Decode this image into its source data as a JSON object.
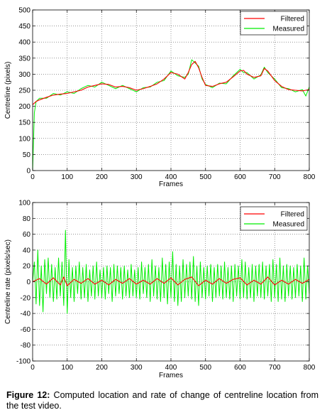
{
  "chart_data": [
    {
      "type": "line",
      "xlabel": "Frames",
      "ylabel": "Centreline (pixels)",
      "xlim": [
        0,
        800
      ],
      "ylim": [
        0,
        500
      ],
      "x_ticks": [
        0,
        100,
        200,
        300,
        400,
        500,
        600,
        700,
        800
      ],
      "y_ticks": [
        0,
        50,
        100,
        150,
        200,
        250,
        300,
        350,
        400,
        450,
        500
      ],
      "grid": true,
      "legend": "top-right",
      "series": [
        {
          "name": "Filtered",
          "color": "#ff0000",
          "x": [
            0,
            5,
            10,
            20,
            40,
            60,
            80,
            100,
            120,
            140,
            160,
            180,
            200,
            220,
            240,
            260,
            280,
            300,
            320,
            340,
            360,
            380,
            400,
            420,
            440,
            450,
            460,
            470,
            480,
            490,
            500,
            520,
            540,
            560,
            580,
            600,
            610,
            620,
            640,
            660,
            670,
            680,
            700,
            720,
            740,
            760,
            780,
            790,
            800
          ],
          "values": [
            205,
            210,
            215,
            220,
            228,
            235,
            238,
            240,
            245,
            250,
            260,
            265,
            270,
            268,
            260,
            262,
            258,
            250,
            255,
            262,
            270,
            285,
            305,
            300,
            285,
            305,
            330,
            340,
            320,
            290,
            265,
            262,
            270,
            275,
            292,
            310,
            312,
            300,
            290,
            295,
            318,
            310,
            280,
            262,
            252,
            250,
            248,
            250,
            252
          ]
        },
        {
          "name": "Measured",
          "color": "#00ee00",
          "x": [
            0,
            5,
            10,
            20,
            40,
            60,
            80,
            100,
            120,
            140,
            160,
            180,
            200,
            220,
            240,
            260,
            280,
            300,
            320,
            340,
            360,
            380,
            400,
            420,
            440,
            450,
            460,
            470,
            480,
            490,
            500,
            520,
            540,
            560,
            580,
            600,
            610,
            620,
            640,
            660,
            670,
            680,
            700,
            720,
            740,
            760,
            780,
            790,
            800
          ],
          "values": [
            0,
            180,
            215,
            225,
            225,
            240,
            235,
            245,
            240,
            255,
            265,
            260,
            275,
            265,
            255,
            265,
            255,
            245,
            258,
            260,
            275,
            280,
            310,
            295,
            290,
            300,
            345,
            335,
            325,
            285,
            268,
            258,
            272,
            270,
            295,
            315,
            305,
            305,
            285,
            298,
            322,
            305,
            285,
            258,
            255,
            245,
            252,
            232,
            260
          ]
        }
      ]
    },
    {
      "type": "line",
      "xlabel": "Frames",
      "ylabel": "Centreline rate (pixels/sec)",
      "xlim": [
        0,
        800
      ],
      "ylim": [
        -100,
        100
      ],
      "x_ticks": [
        0,
        100,
        200,
        300,
        400,
        500,
        600,
        700,
        800
      ],
      "y_ticks": [
        -100,
        -80,
        -60,
        -40,
        -20,
        0,
        20,
        40,
        60,
        80,
        100
      ],
      "grid": true,
      "legend": "top-right",
      "series": [
        {
          "name": "Filtered",
          "color": "#ff0000",
          "x": [
            0,
            20,
            40,
            60,
            80,
            90,
            100,
            120,
            140,
            160,
            180,
            200,
            220,
            240,
            260,
            280,
            300,
            320,
            340,
            360,
            380,
            400,
            420,
            440,
            460,
            480,
            500,
            520,
            540,
            560,
            580,
            600,
            620,
            640,
            660,
            680,
            700,
            720,
            740,
            760,
            780,
            800
          ],
          "values": [
            0,
            4,
            -3,
            5,
            -4,
            6,
            -5,
            3,
            -2,
            4,
            -3,
            2,
            -4,
            3,
            -2,
            4,
            -3,
            2,
            -3,
            4,
            -2,
            5,
            -4,
            3,
            6,
            -5,
            2,
            -3,
            4,
            -2,
            3,
            5,
            -4,
            2,
            -3,
            6,
            -4,
            2,
            -3,
            3,
            -2,
            3
          ]
        },
        {
          "name": "Measured",
          "color": "#00ee00",
          "x": [
            0,
            5,
            10,
            15,
            20,
            25,
            30,
            35,
            40,
            45,
            50,
            55,
            60,
            65,
            70,
            75,
            80,
            85,
            90,
            95,
            100,
            105,
            110,
            115,
            120,
            125,
            130,
            135,
            140,
            145,
            150,
            155,
            160,
            165,
            170,
            175,
            180,
            185,
            190,
            195,
            200,
            205,
            210,
            215,
            220,
            225,
            230,
            235,
            240,
            245,
            250,
            255,
            260,
            265,
            270,
            275,
            280,
            285,
            290,
            295,
            300,
            305,
            310,
            315,
            320,
            325,
            330,
            335,
            340,
            345,
            350,
            355,
            360,
            365,
            370,
            375,
            380,
            385,
            390,
            395,
            400,
            405,
            410,
            415,
            420,
            425,
            430,
            435,
            440,
            445,
            450,
            455,
            460,
            465,
            470,
            475,
            480,
            485,
            490,
            495,
            500,
            505,
            510,
            515,
            520,
            525,
            530,
            535,
            540,
            545,
            550,
            555,
            560,
            565,
            570,
            575,
            580,
            585,
            590,
            595,
            600,
            605,
            610,
            615,
            620,
            625,
            630,
            635,
            640,
            645,
            650,
            655,
            660,
            665,
            670,
            675,
            680,
            685,
            690,
            695,
            700,
            705,
            710,
            715,
            720,
            725,
            730,
            735,
            740,
            745,
            750,
            755,
            760,
            765,
            770,
            775,
            780,
            785,
            790,
            795,
            800
          ],
          "values": [
            0,
            25,
            -28,
            40,
            -30,
            20,
            -38,
            28,
            -15,
            30,
            -20,
            22,
            -25,
            18,
            -22,
            30,
            -18,
            25,
            -30,
            65,
            -40,
            28,
            -20,
            18,
            -25,
            20,
            -15,
            25,
            -22,
            18,
            -20,
            22,
            -25,
            15,
            -18,
            20,
            -22,
            25,
            -18,
            15,
            -20,
            18,
            -22,
            20,
            -15,
            18,
            -25,
            22,
            -18,
            20,
            -15,
            18,
            -22,
            20,
            -18,
            15,
            -20,
            22,
            -18,
            15,
            -20,
            18,
            -22,
            25,
            -15,
            18,
            -20,
            22,
            -25,
            28,
            -18,
            20,
            -22,
            18,
            -25,
            30,
            -20,
            22,
            -28,
            25,
            -20,
            38,
            -25,
            22,
            -30,
            20,
            -25,
            28,
            -20,
            22,
            -18,
            25,
            -22,
            32,
            -25,
            20,
            -30,
            25,
            -20,
            18,
            -22,
            20,
            -18,
            22,
            -25,
            18,
            -20,
            22,
            -18,
            20,
            -22,
            25,
            -20,
            18,
            -22,
            20,
            -25,
            22,
            -18,
            20,
            -22,
            28,
            -20,
            25,
            -22,
            18,
            -20,
            22,
            -25,
            20,
            -18,
            22,
            -20,
            25,
            -22,
            20,
            -18,
            22,
            -25,
            28,
            -20,
            22,
            -25,
            30,
            -22,
            20,
            -25,
            22,
            -18,
            20,
            -22,
            18,
            -20,
            22,
            -18,
            20,
            -25,
            30,
            -22,
            20,
            -15
          ]
        }
      ]
    }
  ],
  "caption": {
    "label": "Figure 12:",
    "text": " Computed location and rate of change of centreline location from the test video."
  }
}
